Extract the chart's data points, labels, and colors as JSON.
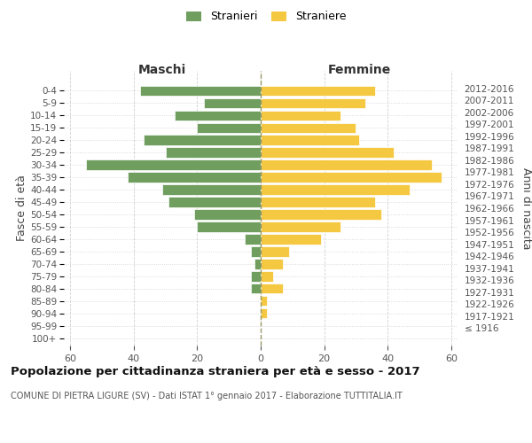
{
  "age_groups": [
    "100+",
    "95-99",
    "90-94",
    "85-89",
    "80-84",
    "75-79",
    "70-74",
    "65-69",
    "60-64",
    "55-59",
    "50-54",
    "45-49",
    "40-44",
    "35-39",
    "30-34",
    "25-29",
    "20-24",
    "15-19",
    "10-14",
    "5-9",
    "0-4"
  ],
  "birth_years": [
    "≤ 1916",
    "1917-1921",
    "1922-1926",
    "1927-1931",
    "1932-1936",
    "1937-1941",
    "1942-1946",
    "1947-1951",
    "1952-1956",
    "1957-1961",
    "1962-1966",
    "1967-1971",
    "1972-1976",
    "1977-1981",
    "1982-1986",
    "1987-1991",
    "1992-1996",
    "1997-2001",
    "2002-2006",
    "2007-2011",
    "2012-2016"
  ],
  "males": [
    0,
    0,
    0,
    0,
    3,
    3,
    2,
    3,
    5,
    20,
    21,
    29,
    31,
    42,
    55,
    30,
    37,
    20,
    27,
    18,
    38
  ],
  "females": [
    0,
    0,
    2,
    2,
    7,
    4,
    7,
    9,
    19,
    25,
    38,
    36,
    47,
    57,
    54,
    42,
    31,
    30,
    25,
    33,
    36
  ],
  "male_color": "#6f9e5f",
  "female_color": "#f5c842",
  "background_color": "#ffffff",
  "grid_color": "#cccccc",
  "xlim": 62,
  "title": "Popolazione per cittadinanza straniera per età e sesso - 2017",
  "subtitle": "COMUNE DI PIETRA LIGURE (SV) - Dati ISTAT 1° gennaio 2017 - Elaborazione TUTTITALIA.IT",
  "xlabel_left": "Maschi",
  "xlabel_right": "Femmine",
  "ylabel_left": "Fasce di età",
  "ylabel_right": "Anni di nascita",
  "legend_male": "Stranieri",
  "legend_female": "Straniere",
  "tick_color": "#555555",
  "bar_edge_color": "#ffffff",
  "bar_linewidth": 0.5
}
